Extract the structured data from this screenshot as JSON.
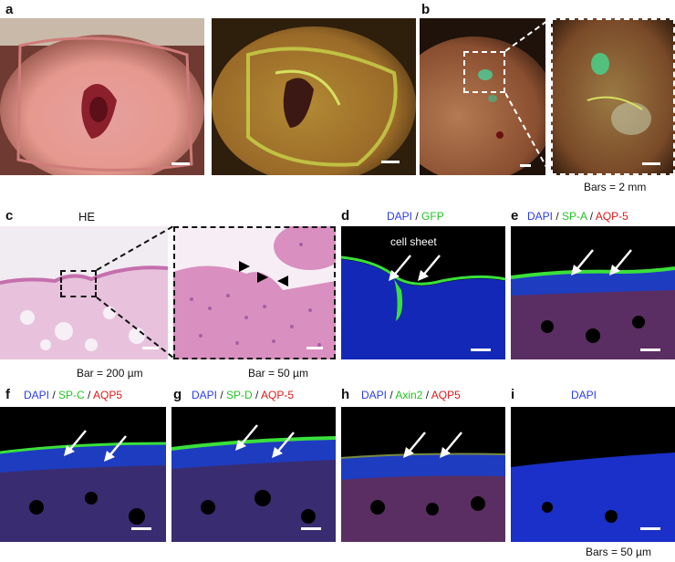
{
  "labels": {
    "a": "a",
    "b": "b",
    "c": "c",
    "d": "d",
    "e": "e",
    "f": "f",
    "g": "g",
    "h": "h",
    "i": "i"
  },
  "captions": {
    "bars_mm": "Bars = 2 mm",
    "bar_200": "Bar = 200 µm",
    "bar_50": "Bar = 50 µm",
    "bars_50": "Bars = 50 µm",
    "he": "HE",
    "cell_sheet": "cell sheet"
  },
  "stains": {
    "d": [
      {
        "t": "DAPI",
        "c": "blue"
      },
      {
        "t": " / ",
        "c": "dark"
      },
      {
        "t": "GFP",
        "c": "green"
      }
    ],
    "e": [
      {
        "t": "DAPI",
        "c": "blue"
      },
      {
        "t": " / ",
        "c": "dark"
      },
      {
        "t": "SP-A",
        "c": "green"
      },
      {
        "t": " / ",
        "c": "dark"
      },
      {
        "t": "AQP-5",
        "c": "red"
      }
    ],
    "f": [
      {
        "t": "DAPI",
        "c": "blue"
      },
      {
        "t": " / ",
        "c": "dark"
      },
      {
        "t": "SP-C",
        "c": "green"
      },
      {
        "t": " / ",
        "c": "dark"
      },
      {
        "t": "AQP5",
        "c": "red"
      }
    ],
    "g": [
      {
        "t": "DAPI",
        "c": "blue"
      },
      {
        "t": " / ",
        "c": "dark"
      },
      {
        "t": "SP-D",
        "c": "green"
      },
      {
        "t": " / ",
        "c": "dark"
      },
      {
        "t": "AQP-5",
        "c": "red"
      }
    ],
    "h": [
      {
        "t": "DAPI",
        "c": "blue"
      },
      {
        "t": " / ",
        "c": "dark"
      },
      {
        "t": "Axin2",
        "c": "green"
      },
      {
        "t": " / ",
        "c": "dark"
      },
      {
        "t": "AQP5",
        "c": "red"
      }
    ],
    "i": [
      {
        "t": "DAPI",
        "c": "blue"
      }
    ]
  },
  "colors": {
    "dapi": "#2a3cf0",
    "green": "#22c422",
    "red": "#e01818"
  }
}
